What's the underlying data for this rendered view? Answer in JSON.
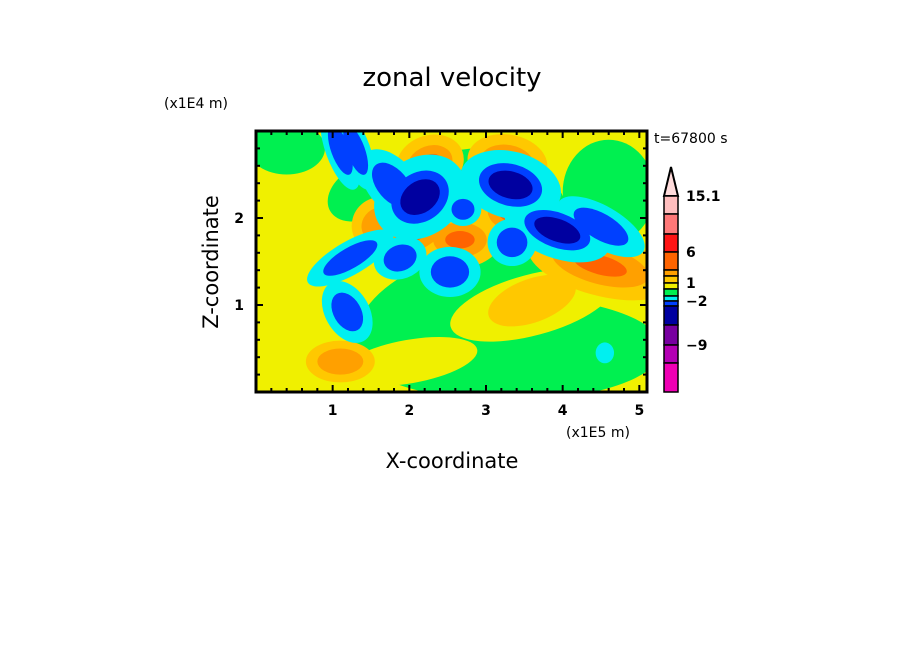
{
  "chart_data": {
    "type": "heatmap",
    "subtype": "filled-contour",
    "title": "zonal velocity",
    "xlabel": "X-coordinate",
    "ylabel": "Z-coordinate",
    "x_scale_label": "(x1E5 m)",
    "y_scale_label": "(x1E4 m)",
    "time_label": "t=67800 s",
    "xlim": [
      0,
      5.1
    ],
    "ylim": [
      0,
      3.0
    ],
    "xticks": [
      1,
      2,
      3,
      4,
      5
    ],
    "xtick_labels": [
      "1",
      "2",
      "3",
      "4",
      "5"
    ],
    "yticks": [
      1,
      2
    ],
    "ytick_labels": [
      "1",
      "2"
    ],
    "colorbar": {
      "labels": [
        "15.1",
        "6",
        "1",
        "−2",
        "−9"
      ],
      "colors_top_to_bottom": [
        "#ffdcdc",
        "#ffbebe",
        "#ff7878",
        "#ff1414",
        "#ff6400",
        "#ffa000",
        "#ffc800",
        "#f0f000",
        "#00f050",
        "#00f0f0",
        "#0040ff",
        "#0000a0",
        "#7800a0",
        "#b400b4",
        "#f000b4"
      ]
    }
  }
}
